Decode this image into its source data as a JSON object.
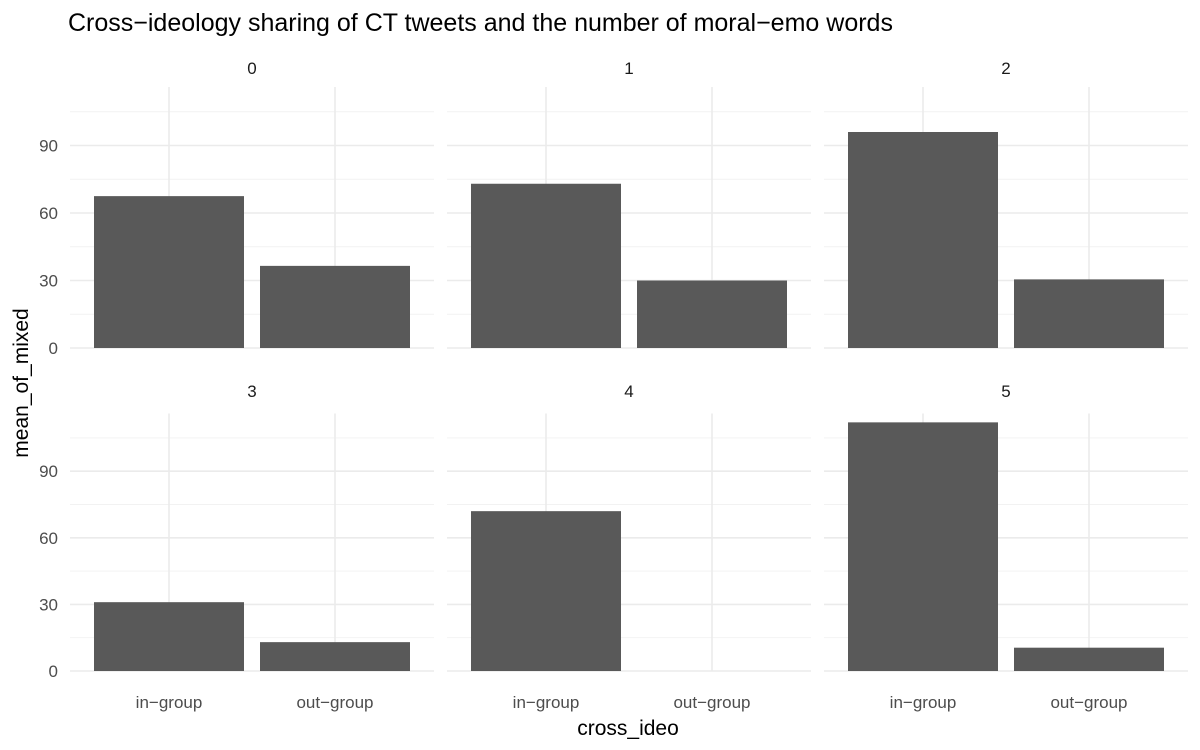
{
  "chart_data": {
    "type": "bar",
    "title": "Cross−ideology sharing of CT tweets and the number of moral−emo words",
    "xlabel": "cross_ideo",
    "ylabel": "mean_of_mixed",
    "categories": [
      "in−group",
      "out−group"
    ],
    "ylim": [
      0,
      116
    ],
    "yticks": [
      0,
      30,
      60,
      90
    ],
    "grid": true,
    "facets": [
      {
        "label": "0",
        "values": [
          67.5,
          36.5
        ]
      },
      {
        "label": "1",
        "values": [
          73,
          30
        ]
      },
      {
        "label": "2",
        "values": [
          96,
          30.5
        ]
      },
      {
        "label": "3",
        "values": [
          31,
          13
        ]
      },
      {
        "label": "4",
        "values": [
          72,
          0
        ]
      },
      {
        "label": "5",
        "values": [
          112,
          10.5
        ]
      }
    ],
    "bar_color": "#595959"
  }
}
